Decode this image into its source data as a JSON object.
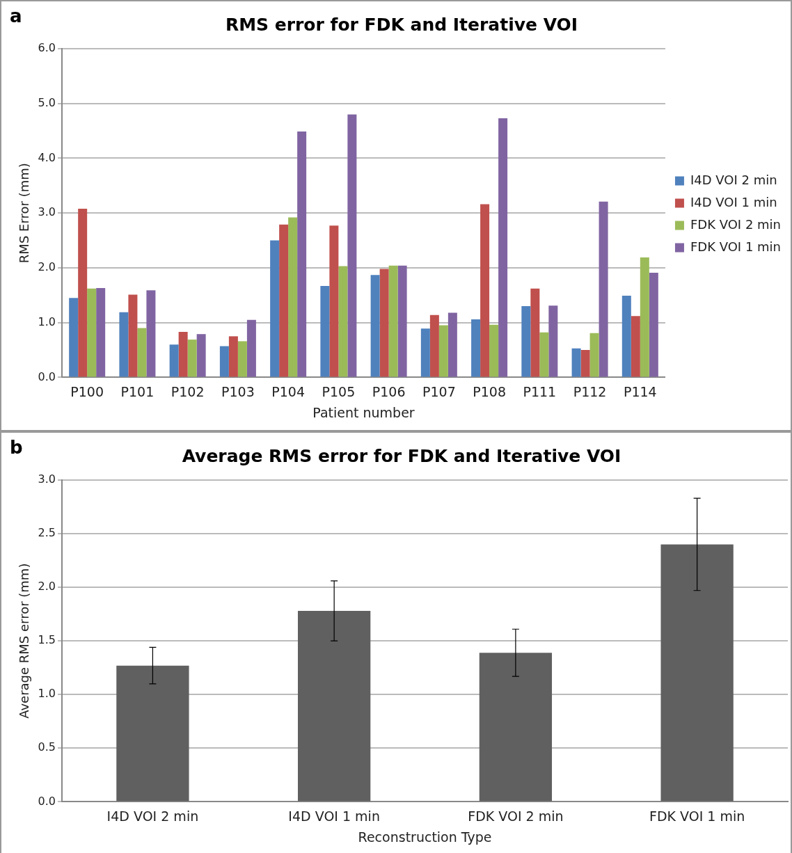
{
  "chart_data": [
    {
      "type": "bar",
      "title": "RMS error for FDK and Iterative VOI",
      "xlabel": "Patient number",
      "ylabel": "RMS Error (mm)",
      "annotations": [
        "a"
      ],
      "categories": [
        "P100",
        "P101",
        "P102",
        "P103",
        "P104",
        "P105",
        "P106",
        "P107",
        "P108",
        "P111",
        "P112",
        "P114"
      ],
      "series": [
        {
          "name": "I4D VOI 2 min",
          "color": "#4f81bd",
          "values": [
            1.45,
            1.19,
            0.6,
            0.57,
            2.5,
            1.67,
            1.87,
            0.89,
            1.06,
            1.3,
            0.53,
            1.49
          ]
        },
        {
          "name": "I4D VOI 1 min",
          "color": "#c0504d",
          "values": [
            3.08,
            1.51,
            0.83,
            0.75,
            2.79,
            2.77,
            1.98,
            1.14,
            3.16,
            1.62,
            0.5,
            1.12
          ]
        },
        {
          "name": "FDK VOI 2 min",
          "color": "#9bbb59",
          "values": [
            1.62,
            0.9,
            0.69,
            0.66,
            2.92,
            2.03,
            2.04,
            0.95,
            0.96,
            0.82,
            0.81,
            2.19
          ]
        },
        {
          "name": "FDK VOI 1 min",
          "color": "#8064a2",
          "values": [
            1.63,
            1.59,
            0.79,
            1.05,
            4.49,
            4.8,
            2.04,
            1.18,
            4.73,
            1.31,
            3.21,
            1.91
          ]
        }
      ],
      "ylim": [
        0,
        6
      ],
      "yticks": [
        {
          "value": 0,
          "label": "0.0"
        },
        {
          "value": 1,
          "label": "1.0"
        },
        {
          "value": 2,
          "label": "2.0"
        },
        {
          "value": 3,
          "label": "3.0"
        },
        {
          "value": 4,
          "label": "4.0"
        },
        {
          "value": 5,
          "label": "5.0"
        },
        {
          "value": 6,
          "label": "6.0"
        }
      ],
      "grid": "y",
      "legend": "right"
    },
    {
      "type": "bar",
      "title": "Average RMS error for FDK and Iterative VOI",
      "xlabel": "Reconstruction Type",
      "ylabel": "Average RMS error (mm)",
      "annotations": [
        "b"
      ],
      "categories": [
        "I4D VOI 2 min",
        "I4D VOI 1 min",
        "FDK VOI 2 min",
        "FDK VOI 1 min"
      ],
      "values": [
        1.27,
        1.78,
        1.39,
        2.4
      ],
      "color": "#606060",
      "errors": [
        0.17,
        0.28,
        0.22,
        0.43
      ],
      "ylim": [
        0,
        3
      ],
      "yticks": [
        {
          "value": 0,
          "label": "0.0"
        },
        {
          "value": 0.5,
          "label": "0.5"
        },
        {
          "value": 1,
          "label": "1.0"
        },
        {
          "value": 1.5,
          "label": "1.5"
        },
        {
          "value": 2,
          "label": "2.0"
        },
        {
          "value": 2.5,
          "label": "2.5"
        },
        {
          "value": 3,
          "label": "3.0"
        }
      ],
      "grid": "y",
      "legend": false
    }
  ]
}
